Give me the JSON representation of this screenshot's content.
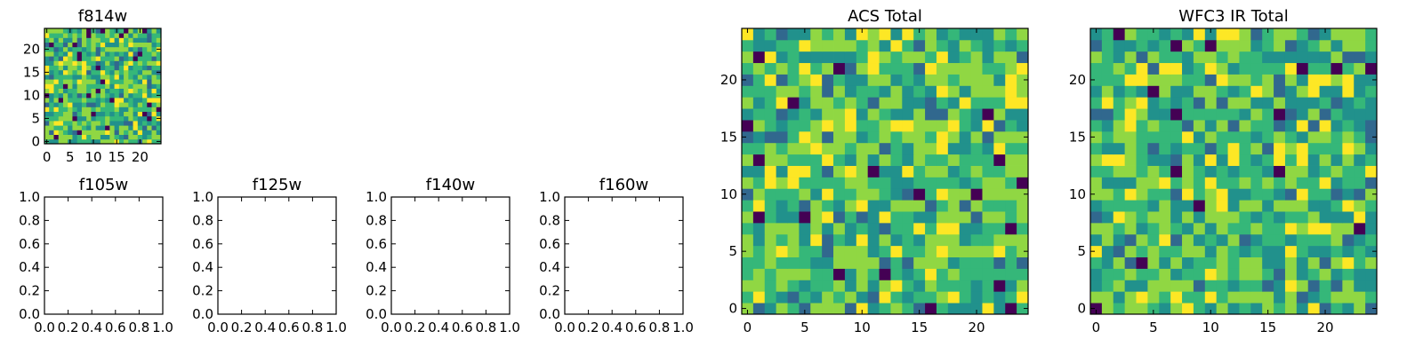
{
  "colormap": [
    "#440154",
    "#31688e",
    "#21918c",
    "#35b779",
    "#90d743",
    "#fde725"
  ],
  "chart_data": [
    {
      "id": "f814w",
      "type": "heatmap",
      "title": "f814w",
      "grid_size": 25,
      "xlim": [
        -0.5,
        24.5
      ],
      "ylim": [
        -0.5,
        24.5
      ],
      "xticks": [
        0,
        5,
        10,
        15,
        20
      ],
      "yticks": [
        0,
        5,
        10,
        15,
        20
      ],
      "seed": 814
    },
    {
      "id": "f105w",
      "type": "heatmap",
      "title": "f105w",
      "empty": true,
      "xlim": [
        0,
        1
      ],
      "ylim": [
        0,
        1
      ],
      "xticks": [
        "0.0",
        "0.2",
        "0.4",
        "0.6",
        "0.8",
        "1.0"
      ],
      "yticks": [
        "0.0",
        "0.2",
        "0.4",
        "0.6",
        "0.8",
        "1.0"
      ]
    },
    {
      "id": "f125w",
      "type": "heatmap",
      "title": "f125w",
      "empty": true,
      "xlim": [
        0,
        1
      ],
      "ylim": [
        0,
        1
      ],
      "xticks": [
        "0.0",
        "0.2",
        "0.4",
        "0.6",
        "0.8",
        "1.0"
      ],
      "yticks": [
        "0.0",
        "0.2",
        "0.4",
        "0.6",
        "0.8",
        "1.0"
      ]
    },
    {
      "id": "f140w",
      "type": "heatmap",
      "title": "f140w",
      "empty": true,
      "xlim": [
        0,
        1
      ],
      "ylim": [
        0,
        1
      ],
      "xticks": [
        "0.0",
        "0.2",
        "0.4",
        "0.6",
        "0.8",
        "1.0"
      ],
      "yticks": [
        "0.0",
        "0.2",
        "0.4",
        "0.6",
        "0.8",
        "1.0"
      ]
    },
    {
      "id": "f160w",
      "type": "heatmap",
      "title": "f160w",
      "empty": true,
      "xlim": [
        0,
        1
      ],
      "ylim": [
        0,
        1
      ],
      "xticks": [
        "0.0",
        "0.2",
        "0.4",
        "0.6",
        "0.8",
        "1.0"
      ],
      "yticks": [
        "0.0",
        "0.2",
        "0.4",
        "0.6",
        "0.8",
        "1.0"
      ]
    },
    {
      "id": "acs-total",
      "type": "heatmap",
      "title": "ACS Total",
      "grid_size": 25,
      "xlim": [
        -0.5,
        24.5
      ],
      "ylim": [
        -0.5,
        24.5
      ],
      "xticks": [
        0,
        5,
        10,
        15,
        20
      ],
      "yticks": [
        0,
        5,
        10,
        15,
        20
      ],
      "seed": 1001
    },
    {
      "id": "wfc3-ir-total",
      "type": "heatmap",
      "title": "WFC3 IR Total",
      "grid_size": 25,
      "xlim": [
        -0.5,
        24.5
      ],
      "ylim": [
        -0.5,
        24.5
      ],
      "xticks": [
        0,
        5,
        10,
        15,
        20
      ],
      "yticks": [
        0,
        5,
        10,
        15,
        20
      ],
      "seed": 2002
    }
  ]
}
